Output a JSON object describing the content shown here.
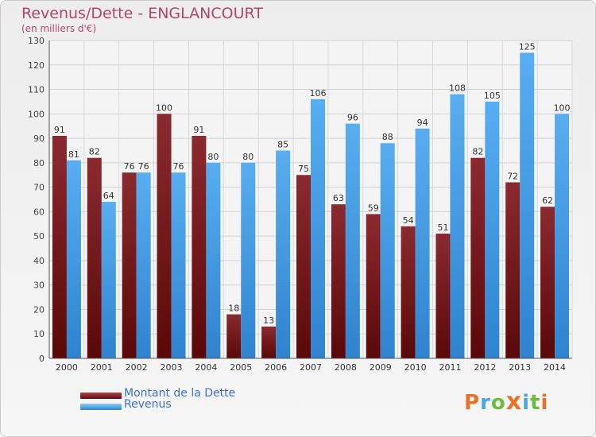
{
  "header": {
    "title": "Revenus/Dette - ENGLANCOURT",
    "subtitle": "(en milliers d'€)"
  },
  "chart_data": {
    "type": "bar",
    "categories": [
      "2000",
      "2001",
      "2002",
      "2003",
      "2004",
      "2005",
      "2006",
      "2007",
      "2008",
      "2009",
      "2010",
      "2011",
      "2012",
      "2013",
      "2014"
    ],
    "series": [
      {
        "name": "Montant de la Dette",
        "color": "#7a1c22",
        "values": [
          91,
          82,
          76,
          100,
          91,
          18,
          13,
          75,
          63,
          59,
          54,
          51,
          82,
          72,
          62
        ]
      },
      {
        "name": "Revenus",
        "color": "#4aa3e6",
        "values": [
          81,
          64,
          76,
          76,
          80,
          80,
          85,
          106,
          96,
          88,
          94,
          108,
          105,
          125,
          100
        ]
      }
    ],
    "title": "Revenus/Dette - ENGLANCOURT",
    "ylabel": "(en milliers d'€)",
    "xlabel": "",
    "ylim": [
      0,
      130
    ],
    "yticks": [
      0,
      10,
      20,
      30,
      40,
      50,
      60,
      70,
      80,
      90,
      100,
      110,
      120,
      130
    ],
    "grid": true,
    "legend_position": "bottom-left",
    "data_labels": true
  },
  "legend": {
    "items": [
      {
        "label": "Montant de la Dette",
        "color": "#7a1c22"
      },
      {
        "label": "Revenus",
        "color": "#4aa3e6"
      }
    ]
  },
  "logo": {
    "letters": [
      "P",
      "r",
      "o",
      "x",
      "i",
      "t",
      "i"
    ],
    "colors": [
      "#e8722a",
      "#4aa3e6",
      "#6bbd3c",
      "#e8722a",
      "#4aa3e6",
      "#6bbd3c",
      "#e8722a"
    ]
  }
}
